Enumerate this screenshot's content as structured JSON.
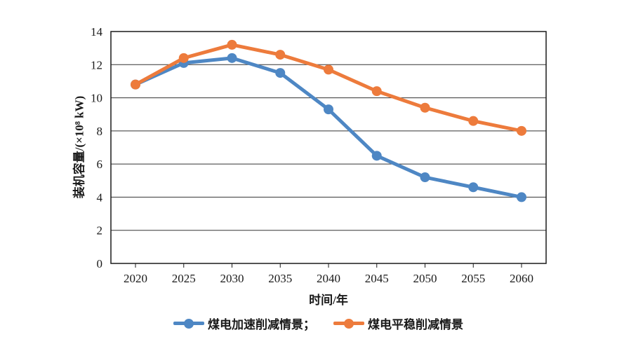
{
  "chart": {
    "y_axis_title": "装机容量/(×10⁸ kW)",
    "x_axis_title": "时间/年",
    "legend": {
      "items": [
        {
          "label": "煤电加速削减情景；",
          "color": "#4E87C4"
        },
        {
          "label": "煤电平稳削减情景",
          "color": "#ED7B3C"
        }
      ]
    }
  },
  "chart_data": {
    "type": "line",
    "categories": [
      "2020",
      "2025",
      "2030",
      "2035",
      "2040",
      "2045",
      "2050",
      "2055",
      "2060"
    ],
    "series": [
      {
        "name": "煤电加速削减情景",
        "color": "#4E87C4",
        "values": [
          10.8,
          12.1,
          12.4,
          11.5,
          9.3,
          6.5,
          5.2,
          4.6,
          4.0
        ]
      },
      {
        "name": "煤电平稳削减情景",
        "color": "#ED7B3C",
        "values": [
          10.8,
          12.4,
          13.2,
          12.6,
          11.7,
          10.4,
          9.4,
          8.6,
          8.0
        ]
      }
    ],
    "title": "",
    "xlabel": "时间/年",
    "ylabel": "装机容量/(×10⁸ kW)",
    "ylim": [
      0,
      14
    ],
    "yticks": [
      0,
      2,
      4,
      6,
      8,
      10,
      12,
      14
    ],
    "grid": true,
    "legend_position": "bottom",
    "marker": "circle",
    "line_width": 5,
    "marker_radius": 7,
    "grid_color": "#333333",
    "axis_color": "#1a1a1a"
  }
}
